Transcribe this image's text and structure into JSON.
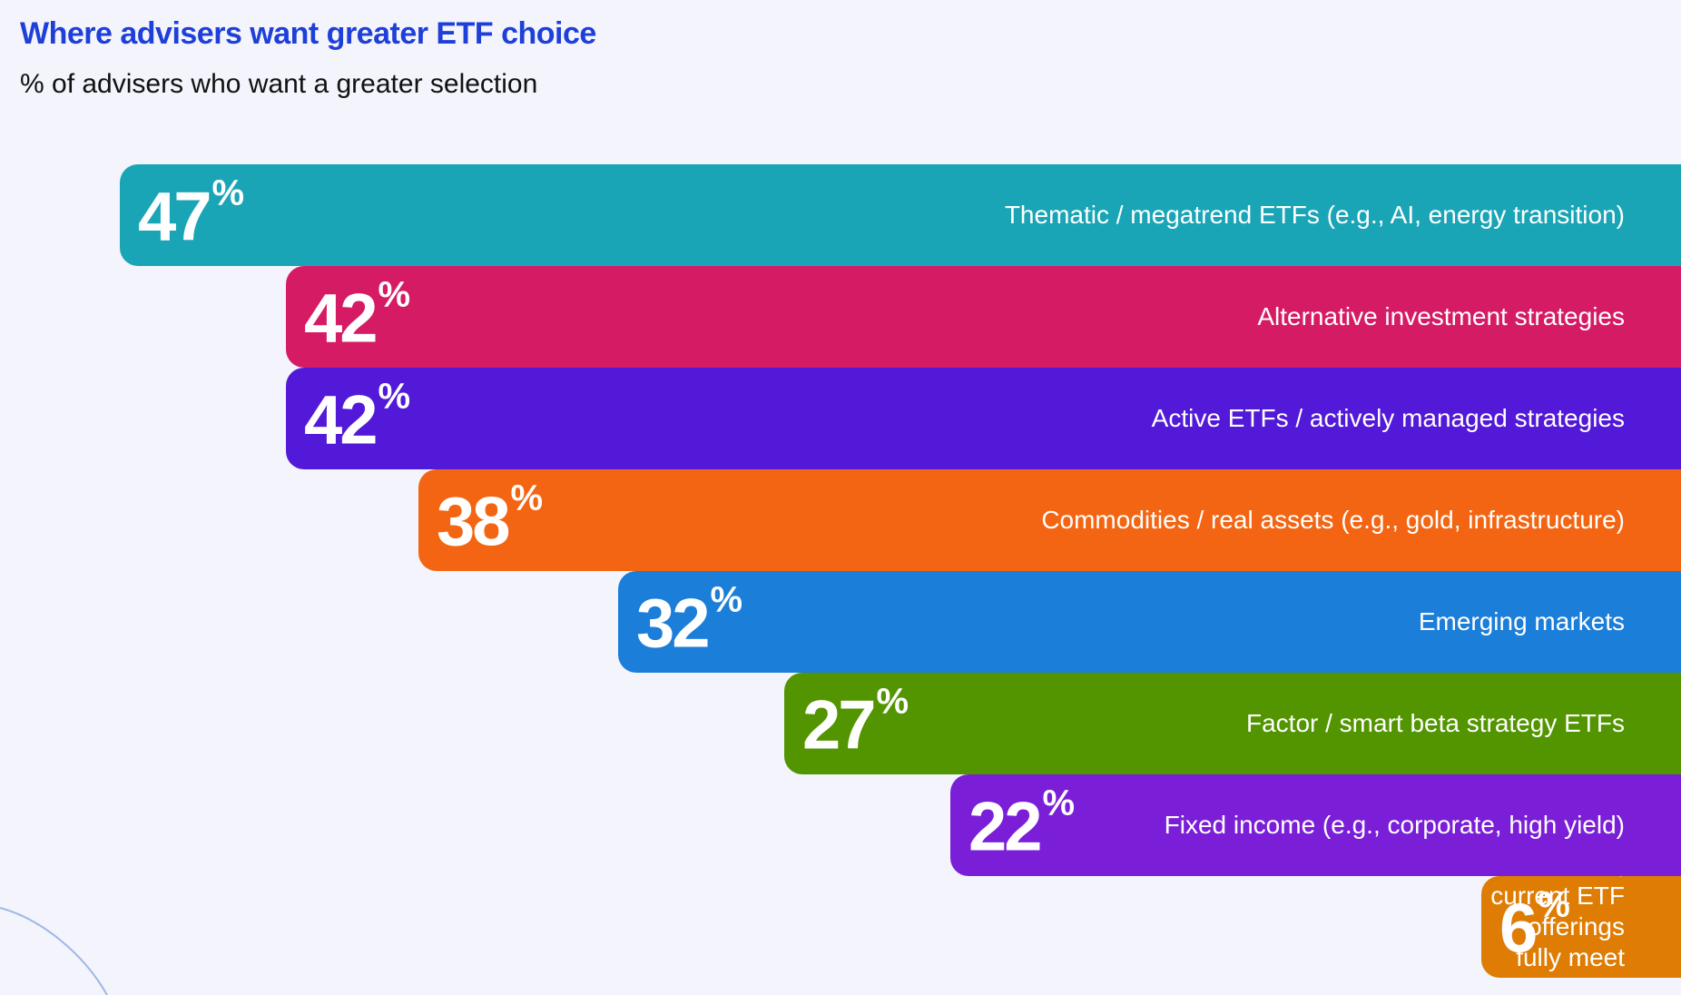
{
  "header": {
    "title": "Where advisers want greater ETF choice",
    "subtitle": "% of advisers who want a greater selection"
  },
  "percent_symbol": "%",
  "chart_data": {
    "type": "bar",
    "orientation": "horizontal",
    "title": "Where advisers want greater ETF choice",
    "subtitle": "% of advisers who want a greater selection",
    "unit": "%",
    "legend": "none",
    "grid": false,
    "xlim": [
      0,
      50
    ],
    "categories": [
      "Thematic / megatrend ETFs (e.g., AI, energy transition)",
      "Alternative investment strategies",
      "Active ETFs / actively managed strategies",
      "Commodities / real assets (e.g., gold, infrastructure)",
      "Emerging markets",
      "Factor / smart beta strategy ETFs",
      "Fixed income (e.g., corporate, high yield)",
      "None, current ETF offerings\nfully meet my needs"
    ],
    "values": [
      47,
      42,
      42,
      38,
      32,
      27,
      22,
      6
    ],
    "colors": [
      "#1aa5b6",
      "#d61b65",
      "#5219d8",
      "#f36512",
      "#1b7ed8",
      "#529500",
      "#7b1ed8",
      "#de7c04"
    ]
  }
}
